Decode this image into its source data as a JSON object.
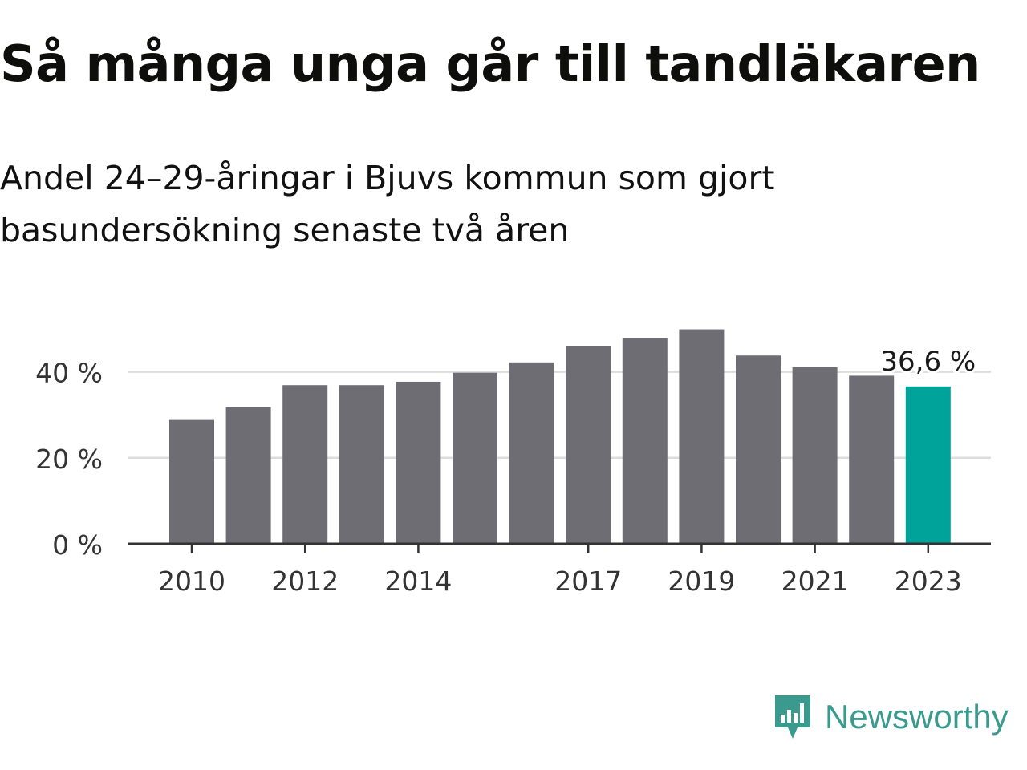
{
  "header": {
    "title": "Så många unga går till tandläkaren",
    "subtitle": "Andel 24–29-åringar i Bjuvs kommun som gjort basundersökning senaste två åren"
  },
  "chart_data": {
    "type": "bar",
    "title": "Så många unga går till tandläkaren",
    "subtitle": "Andel 24–29-åringar i Bjuvs kommun som gjort basundersökning senaste två åren",
    "categories": [
      "2010",
      "2011",
      "2012",
      "2013",
      "2014",
      "2015",
      "2016",
      "2017",
      "2018",
      "2019",
      "2020",
      "2021",
      "2022",
      "2023"
    ],
    "x_tick_labels": [
      "2010",
      "2012",
      "2014",
      "2017",
      "2019",
      "2021",
      "2023"
    ],
    "values": [
      28.8,
      31.8,
      36.9,
      36.9,
      37.7,
      39.8,
      42.2,
      45.9,
      47.9,
      49.9,
      43.8,
      41.1,
      39.1,
      36.6
    ],
    "ylim": [
      0,
      50
    ],
    "y_ticks": [
      0,
      20,
      40
    ],
    "y_tick_labels": [
      "0 %",
      "20 %",
      "40 %"
    ],
    "xlabel": "",
    "ylabel": "",
    "grid": true,
    "highlight": {
      "category": "2023",
      "label": "36,6 %"
    },
    "colors": {
      "bar": "#6e6d73",
      "highlight": "#00a39a",
      "grid": "#dddddd",
      "axis": "#333333"
    }
  },
  "brand": {
    "name": "Newsworthy",
    "color": "#3a9a8e",
    "icon": "newsworthy-logo-icon"
  }
}
